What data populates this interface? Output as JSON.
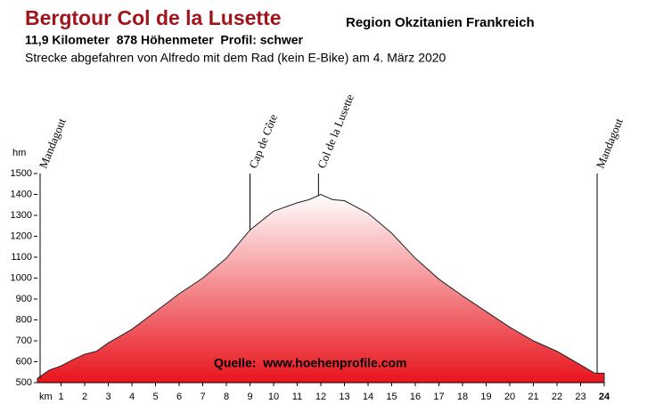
{
  "chart_data": {
    "type": "area",
    "title": "Bergtour Col de la Lusette",
    "subtitle": "Region Okzitanien Frankreich",
    "stats": "11,9 Kilometer  878 Höhenmeter  Profil: schwer",
    "description": "Strecke abgefahren von Alfredo mit dem Rad (kein E-Bike) am 4. März 2020",
    "source": "Quelle:  www.hoehenprofile.com",
    "y_label": "hm",
    "x_label": "km",
    "color": "#e8141c",
    "x": [
      0,
      0.5,
      1,
      1.5,
      2,
      2.5,
      3,
      4,
      5,
      6,
      7,
      8,
      9,
      10,
      11,
      11.5,
      12,
      12.5,
      13,
      14,
      15,
      16,
      17,
      18,
      19,
      20,
      21,
      22,
      23,
      23.6,
      24
    ],
    "values": [
      520,
      560,
      580,
      610,
      636,
      650,
      690,
      755,
      840,
      925,
      1000,
      1095,
      1230,
      1320,
      1360,
      1375,
      1400,
      1375,
      1370,
      1310,
      1215,
      1095,
      995,
      915,
      840,
      765,
      700,
      650,
      585,
      545,
      545
    ],
    "xlim": [
      0,
      24
    ],
    "ylim": [
      500,
      1500
    ],
    "xticks": [
      1,
      2,
      3,
      4,
      5,
      6,
      7,
      8,
      9,
      10,
      11,
      12,
      13,
      14,
      15,
      16,
      17,
      18,
      19,
      20,
      21,
      22,
      23,
      24
    ],
    "yticks": [
      500,
      600,
      700,
      800,
      900,
      1000,
      1100,
      1200,
      1300,
      1400,
      1500
    ],
    "annotations": [
      {
        "label": "Mandagout",
        "x": 0
      },
      {
        "label": "Cap de Côte",
        "x": 9
      },
      {
        "label": "Col de la Lusette",
        "x": 11.9
      },
      {
        "label": "Mandagout",
        "x": 23.7
      }
    ]
  }
}
